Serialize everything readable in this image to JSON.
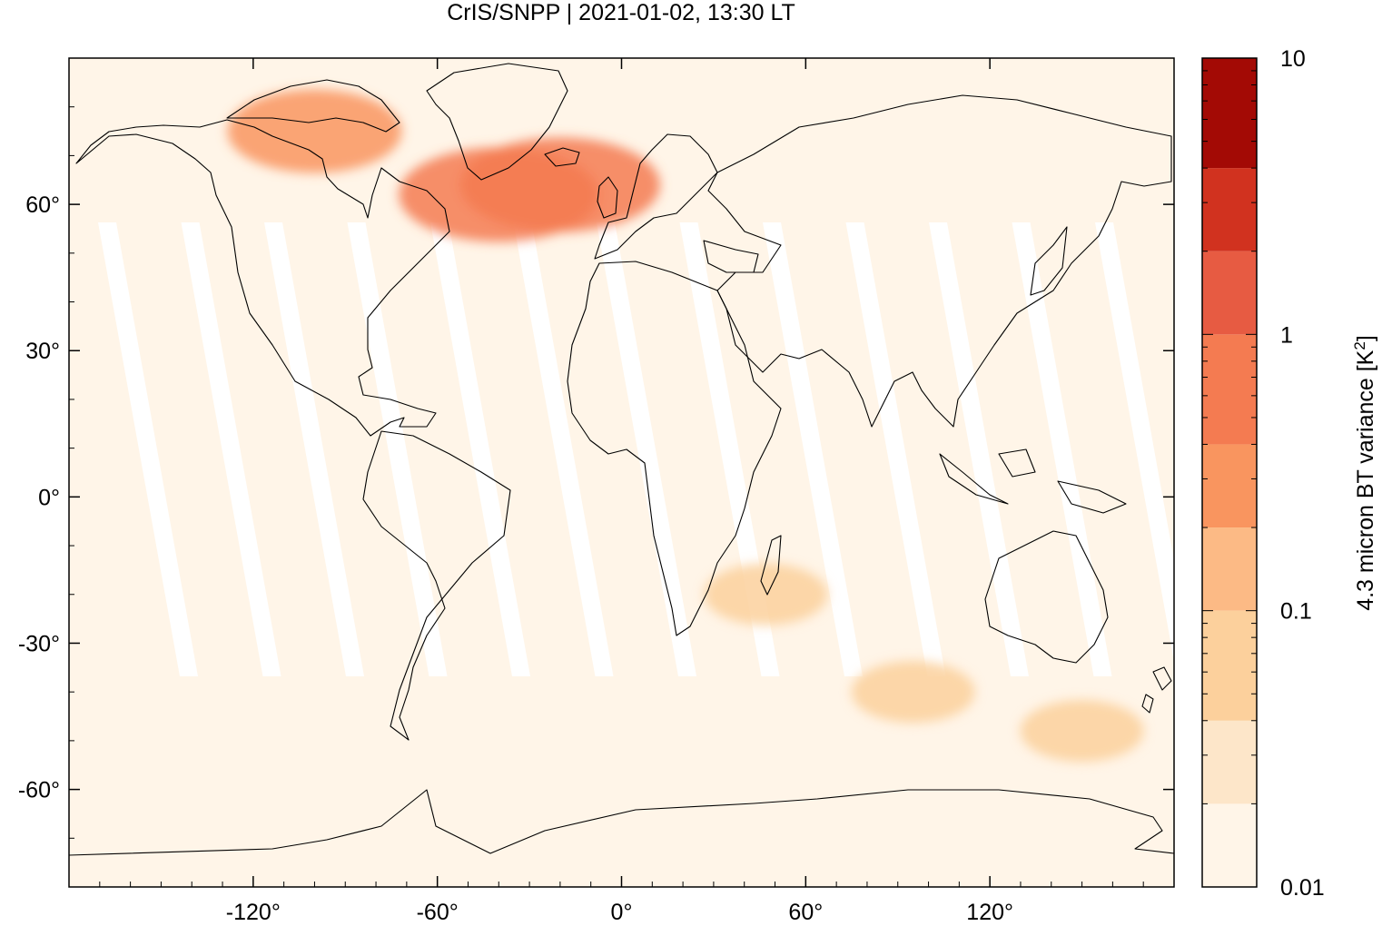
{
  "chart_data": {
    "type": "heatmap",
    "title": "CrIS/SNPP | 2021-01-02, 13:30 LT",
    "projection": "equirectangular",
    "xlim": [
      -180,
      180
    ],
    "ylim": [
      -80,
      90
    ],
    "x_ticks": [
      -120,
      -60,
      0,
      60,
      120
    ],
    "x_tick_labels": [
      "-120°",
      "-60°",
      "0°",
      "60°",
      "120°"
    ],
    "y_ticks": [
      60,
      30,
      0,
      -30,
      -60
    ],
    "y_tick_labels": [
      "60°",
      "30°",
      "0°",
      "-30°",
      "-60°"
    ],
    "grid": false,
    "colorbar": {
      "label": "4.3 micron BT variance [K",
      "label_sup": "2",
      "label_end": "]",
      "scale": "log",
      "range": [
        0.01,
        10
      ],
      "tick_values": [
        0.01,
        0.1,
        1,
        10
      ],
      "tick_labels": [
        "0.01",
        "0.1",
        "1",
        "10"
      ],
      "levels": [
        0.01,
        0.02,
        0.04,
        0.1,
        0.2,
        0.4,
        1,
        2,
        4,
        10
      ],
      "colors": [
        "#fff5e8",
        "#fde6c9",
        "#fcd09c",
        "#fcba85",
        "#f9955f",
        "#f47b51",
        "#e75b42",
        "#d1321f",
        "#a30a05"
      ]
    },
    "background_color": "#fff5e8",
    "gap_color": "#ffffff",
    "features": [
      {
        "name": "Greenland / North Atlantic high variance",
        "lon": -40,
        "lat": 62,
        "level": 5
      },
      {
        "name": "Iceland high variance",
        "lon": -20,
        "lat": 64,
        "level": 5
      },
      {
        "name": "Canadian Arctic elevated variance",
        "lon": -100,
        "lat": 75,
        "level": 4
      },
      {
        "name": "Madagascar region elevated variance",
        "lon": 47,
        "lat": -20,
        "level": 2
      },
      {
        "name": "Southern Indian Ocean elevated variance",
        "lon": 95,
        "lat": -40,
        "level": 2
      },
      {
        "name": "Tasman region elevated variance",
        "lon": 150,
        "lat": -48,
        "level": 2
      }
    ]
  }
}
